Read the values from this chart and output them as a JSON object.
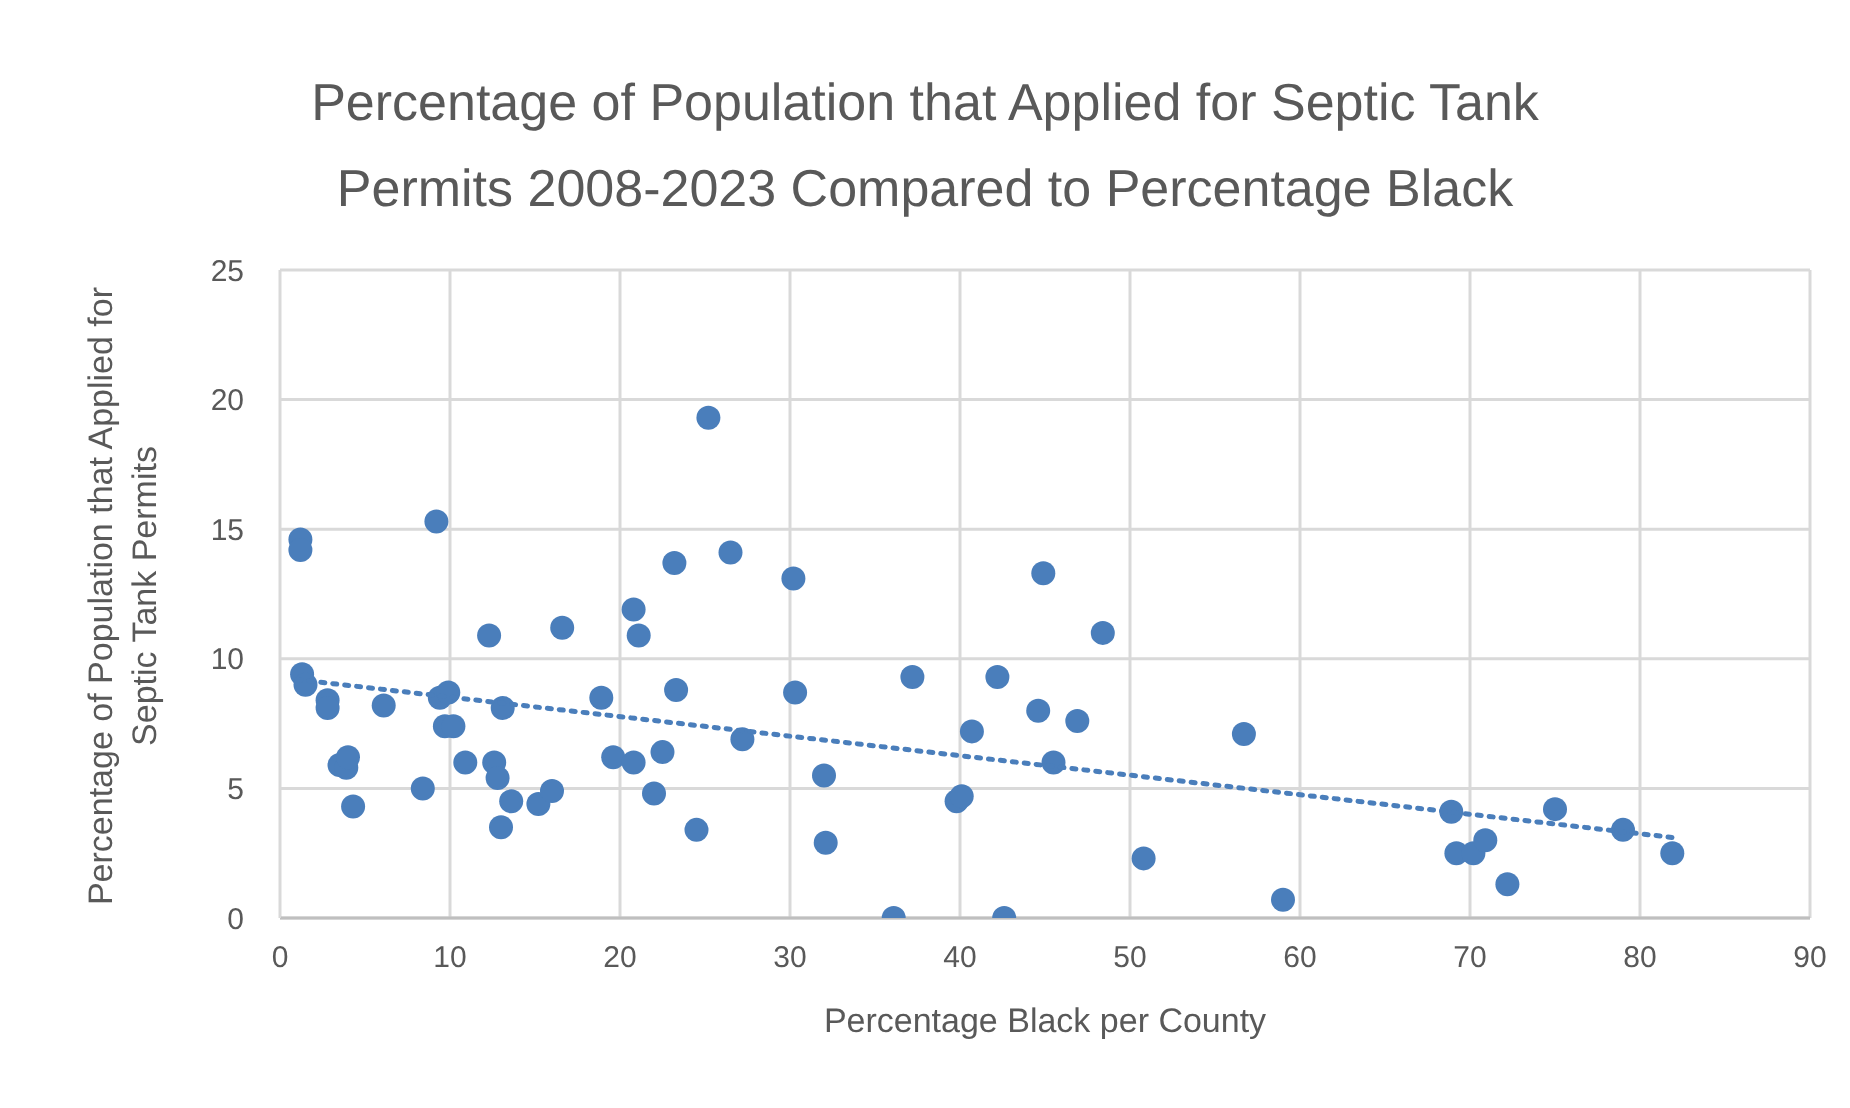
{
  "chart_data": {
    "type": "scatter",
    "title": "Percentage of Population that Applied for Septic Tank Permits 2008-2023 Compared to Percentage Black",
    "xlabel": "Percentage Black per County",
    "ylabel": "Percentage of Population that Applied for Septic Tank Permits",
    "xlim": [
      0,
      90
    ],
    "xticks": [
      0,
      10,
      20,
      30,
      40,
      50,
      60,
      70,
      80,
      90
    ],
    "ylim": [
      0,
      25
    ],
    "yticks": [
      0,
      5,
      10,
      15,
      20,
      25
    ],
    "grid": true,
    "series": [
      {
        "color": "#4a7ebb",
        "marker": "circle",
        "x": [
          1.2,
          1.2,
          1.3,
          1.5,
          2.8,
          2.8,
          3.5,
          3.9,
          4.0,
          4.3,
          6.1,
          8.4,
          9.2,
          9.4,
          9.9,
          9.7,
          10.2,
          10.9,
          12.3,
          12.6,
          12.8,
          13.0,
          13.1,
          13.6,
          15.2,
          16.0,
          16.6,
          18.9,
          19.6,
          20.8,
          20.8,
          21.1,
          22.0,
          22.5,
          23.2,
          23.3,
          24.5,
          25.2,
          26.5,
          27.2,
          30.2,
          30.3,
          32.0,
          32.1,
          36.1,
          37.2,
          39.8,
          40.1,
          40.7,
          42.2,
          42.6,
          44.6,
          44.9,
          45.5,
          46.9,
          48.4,
          50.8,
          56.7,
          59.0,
          68.9,
          69.2,
          70.2,
          70.9,
          72.2,
          75.0,
          79.0,
          81.9
        ],
        "values": [
          14.6,
          14.2,
          9.4,
          9.0,
          8.4,
          8.1,
          5.9,
          5.8,
          6.2,
          4.3,
          8.2,
          5.0,
          15.3,
          8.5,
          8.7,
          7.4,
          7.4,
          6.0,
          10.9,
          6.0,
          5.4,
          3.5,
          8.1,
          4.5,
          4.4,
          4.9,
          11.2,
          8.5,
          6.2,
          11.9,
          6.0,
          10.9,
          4.8,
          6.4,
          13.7,
          8.8,
          3.4,
          19.3,
          14.1,
          6.9,
          13.1,
          8.7,
          5.5,
          2.9,
          0,
          9.3,
          4.5,
          4.7,
          7.2,
          9.3,
          0,
          8.0,
          13.3,
          6.0,
          7.6,
          11.0,
          2.3,
          7.1,
          0.7,
          4.1,
          2.5,
          2.5,
          3.0,
          1.3,
          4.2,
          3.4,
          2.5
        ]
      },
      {
        "type": "line",
        "color": "#4a7ebb",
        "marker": "none",
        "line_style": "dotted",
        "x": [
          1,
          82
        ],
        "values": [
          9.2,
          3.1
        ]
      }
    ]
  }
}
